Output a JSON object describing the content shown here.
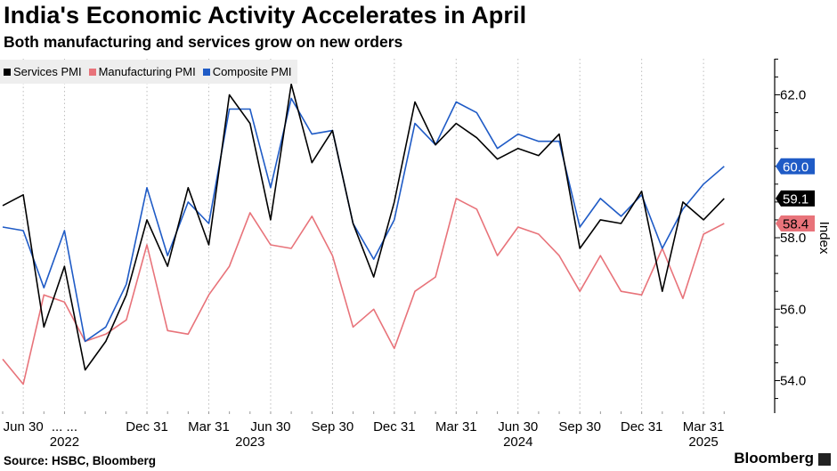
{
  "header": {
    "title": "India's Economic Activity Accelerates in April",
    "subtitle": "Both manufacturing and services grow on new orders"
  },
  "footer": {
    "source": "Source: HSBC, Bloomberg",
    "brand": "Bloomberg"
  },
  "colors": {
    "services": "#000000",
    "manufacturing": "#e8737a",
    "composite": "#1f5bc6",
    "grid": "#bdbdbd",
    "legend_bg": "#eeeeee"
  },
  "chart_data": {
    "type": "line",
    "title": "India's Economic Activity Accelerates in April",
    "subtitle": "Both manufacturing and services grow on new orders",
    "ylabel": "Index",
    "ylim": [
      53.2,
      63.0
    ],
    "y_axis_position": "right",
    "y_ticks": [
      "54.0",
      "56.0",
      "58.0",
      "60.0",
      "62.0"
    ],
    "grid": "vertical dashed",
    "legend_placement": "top-left",
    "x": [
      "2022-05",
      "2022-06",
      "2022-07",
      "2022-08",
      "2022-09",
      "2022-10",
      "2022-11",
      "2022-12",
      "2023-01",
      "2023-02",
      "2023-03",
      "2023-04",
      "2023-05",
      "2023-06",
      "2023-07",
      "2023-08",
      "2023-09",
      "2023-10",
      "2023-11",
      "2023-12",
      "2024-01",
      "2024-02",
      "2024-03",
      "2024-04",
      "2024-05",
      "2024-06",
      "2024-07",
      "2024-08",
      "2024-09",
      "2024-10",
      "2024-11",
      "2024-12",
      "2025-01",
      "2025-02",
      "2025-03",
      "2025-04"
    ],
    "x_tick_labels": [
      "Jun 30",
      "... ...",
      "Dec 31",
      "Mar 31",
      "Jun 30",
      "Sep 30",
      "Dec 31",
      "Mar 31",
      "Jun 30",
      "Sep 30",
      "Dec 31",
      "Mar 31"
    ],
    "x_tick_months": [
      "2022-06",
      "2022-08",
      "2022-12",
      "2023-03",
      "2023-06",
      "2023-09",
      "2023-12",
      "2024-03",
      "2024-06",
      "2024-09",
      "2024-12",
      "2025-03"
    ],
    "x_year_labels": [
      {
        "label": "2022",
        "month": "2022-08"
      },
      {
        "label": "2023",
        "month": "2023-05"
      },
      {
        "label": "2024",
        "month": "2024-06"
      },
      {
        "label": "2025",
        "month": "2025-03"
      }
    ],
    "series": [
      {
        "name": "Services PMI",
        "color": "#000000",
        "values": [
          58.9,
          59.2,
          55.5,
          57.2,
          54.3,
          55.1,
          56.4,
          58.5,
          57.2,
          59.4,
          57.8,
          62.0,
          61.2,
          58.5,
          62.3,
          60.1,
          61.0,
          58.4,
          56.9,
          59.0,
          61.8,
          60.6,
          61.2,
          60.8,
          60.2,
          60.5,
          60.3,
          60.9,
          57.7,
          58.5,
          58.4,
          59.3,
          56.5,
          59.0,
          58.5,
          59.1
        ],
        "end_label": "59.1"
      },
      {
        "name": "Manufacturing PMI",
        "color": "#e8737a",
        "values": [
          54.6,
          53.9,
          56.4,
          56.2,
          55.1,
          55.3,
          55.7,
          57.8,
          55.4,
          55.3,
          56.4,
          57.2,
          58.7,
          57.8,
          57.7,
          58.6,
          57.5,
          55.5,
          56.0,
          54.9,
          56.5,
          56.9,
          59.1,
          58.8,
          57.5,
          58.3,
          58.1,
          57.5,
          56.5,
          57.5,
          56.5,
          56.4,
          57.7,
          56.3,
          58.1,
          58.4
        ],
        "end_label": "58.4"
      },
      {
        "name": "Composite PMI",
        "color": "#1f5bc6",
        "values": [
          58.3,
          58.2,
          56.6,
          58.2,
          55.1,
          55.5,
          56.7,
          59.4,
          57.5,
          59.0,
          58.4,
          61.6,
          61.6,
          59.4,
          61.9,
          60.9,
          61.0,
          58.4,
          57.4,
          58.5,
          61.2,
          60.6,
          61.8,
          61.5,
          60.5,
          60.9,
          60.7,
          60.7,
          58.3,
          59.1,
          58.6,
          59.2,
          57.7,
          58.8,
          59.5,
          60.0
        ],
        "end_label": "60.0"
      }
    ]
  }
}
